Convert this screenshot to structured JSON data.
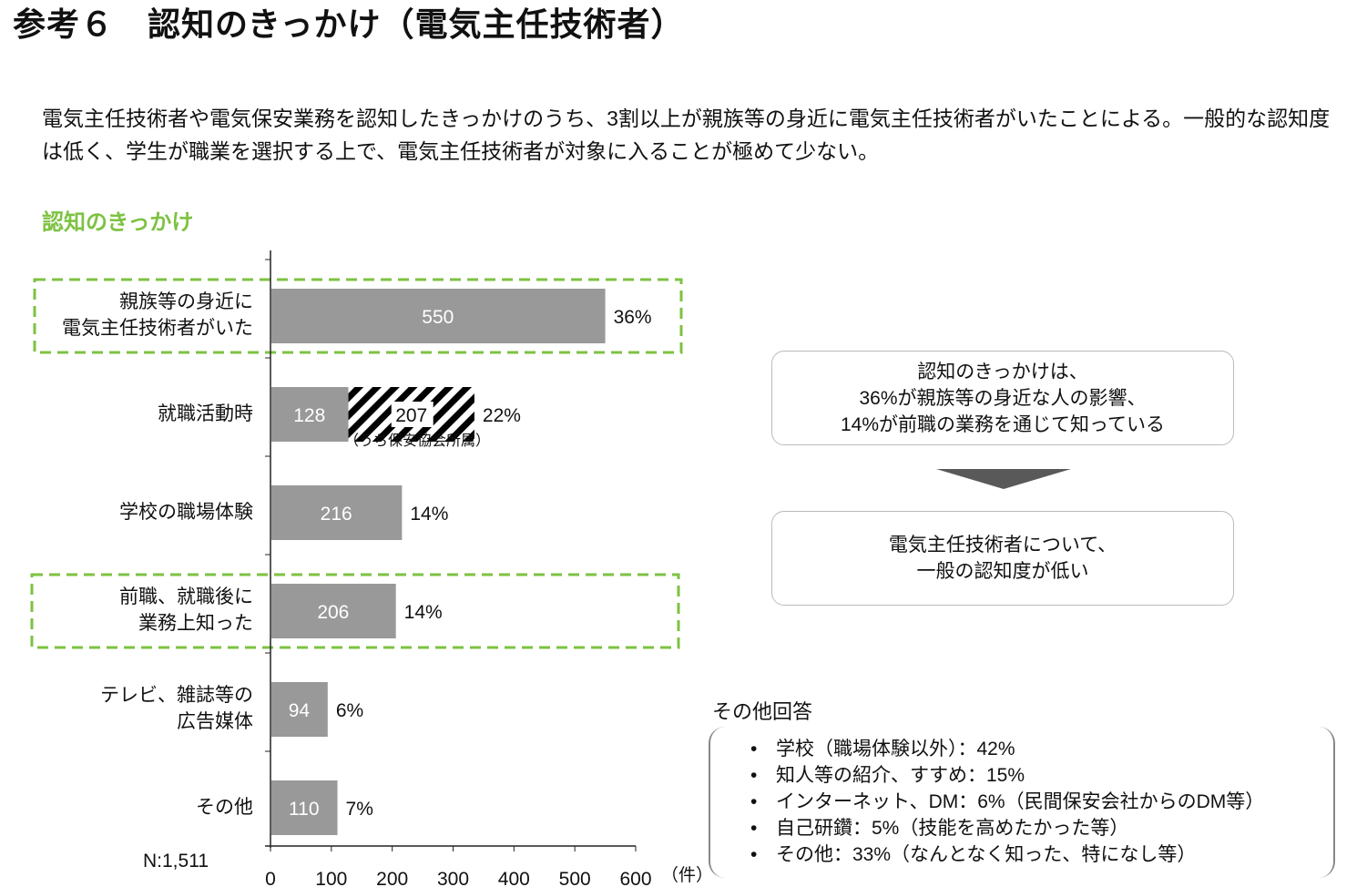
{
  "header": {
    "title": "参考６　認知のきっかけ（電気主任技術者）"
  },
  "intro": "電気主任技術者や電気保安業務を認知したきっかけのうち、3割以上が親族等の身近に電気主任技術者がいたことによる。一般的な認知度は低く、学生が職業を選択する上で、電気主任技術者が対象に入ることが極めて少ない。",
  "chart_data": {
    "type": "bar",
    "orientation": "horizontal",
    "title": "認知のきっかけ",
    "categories": [
      [
        "親族等の身近に",
        "電気主任技術者がいた"
      ],
      [
        "就職活動時"
      ],
      [
        "学校の職場体験"
      ],
      [
        "前職、就職後に",
        "業務上知った"
      ],
      [
        "テレビ、雑誌等の",
        "広告媒体"
      ],
      [
        "その他"
      ]
    ],
    "series": [
      {
        "name": "件数",
        "values": [
          550,
          128,
          216,
          206,
          94,
          110
        ],
        "color": "#999999"
      },
      {
        "name": "うち保安協会所属",
        "values": [
          0,
          207,
          0,
          0,
          0,
          0
        ],
        "pattern": "hatched"
      }
    ],
    "percent_labels": [
      "36%",
      "22%",
      "14%",
      "14%",
      "6%",
      "7%"
    ],
    "annotations": {
      "hatched_note": "（うち保安協会所属）",
      "n": "N:1,511"
    },
    "highlighted_categories": [
      0,
      3
    ],
    "highlight_color": "#7dc242",
    "xlim": [
      0,
      600
    ],
    "xticks": [
      "0",
      "100",
      "200",
      "300",
      "400",
      "500",
      "600"
    ],
    "xunit": "（件）"
  },
  "summary_box": [
    "認知のきっかけは、",
    "36%が親族等の身近な人の影響、",
    "14%が前職の業務を通じて知っている"
  ],
  "conclusion_box": [
    "電気主任技術者について、",
    "一般の認知度が低い"
  ],
  "other_answers": {
    "title": "その他回答",
    "items": [
      "学校（職場体験以外）：42%",
      "知人等の紹介、すすめ：15%",
      "インターネット、DM：6%（民間保安会社からのDM等）",
      "自己研鑽：5%（技能を高めたかった等）",
      "その他：33%（なんとなく知った、特になし等）"
    ]
  }
}
